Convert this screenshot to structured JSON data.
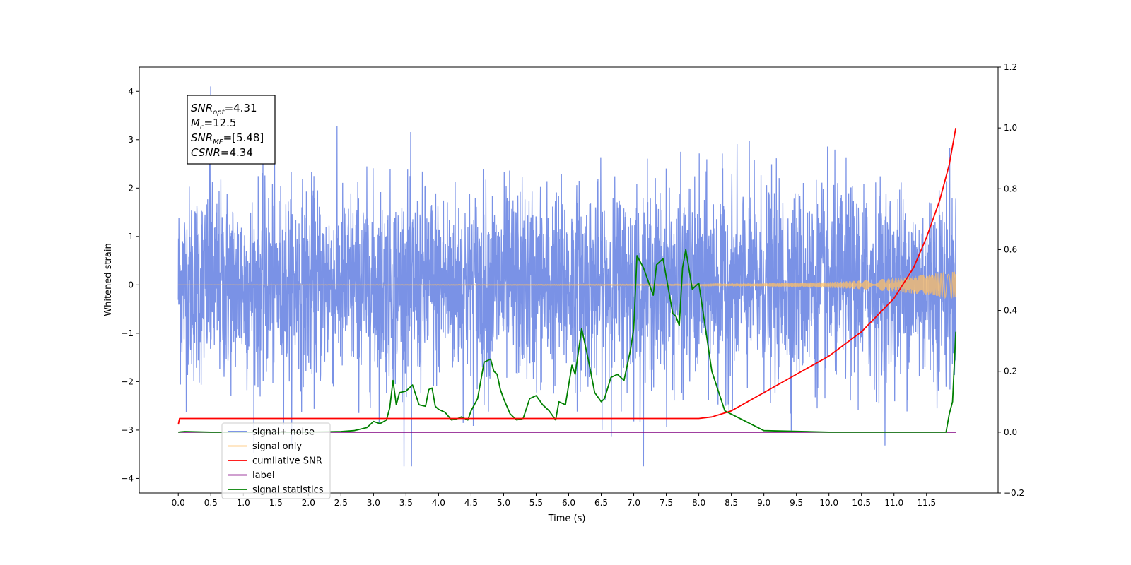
{
  "chart_data": {
    "type": "line",
    "title": "",
    "xlabel": "Time (s)",
    "ylabel": "Whitened strain",
    "xlim": [
      -0.6,
      12.6
    ],
    "ylim": [
      -4.3,
      4.5
    ],
    "y2lim": [
      -0.2,
      1.2
    ],
    "xticks": [
      "0.0",
      "0.5",
      "1.0",
      "1.5",
      "2.0",
      "2.5",
      "3.0",
      "3.5",
      "4.0",
      "4.5",
      "5.0",
      "5.5",
      "6.0",
      "6.5",
      "7.0",
      "7.5",
      "8.0",
      "8.5",
      "9.0",
      "9.5",
      "10.0",
      "10.5",
      "11.0",
      "11.5"
    ],
    "yticks": [
      "4",
      "3",
      "2",
      "1",
      "0",
      "−1",
      "−2",
      "−3",
      "−4"
    ],
    "y2ticks": [
      "1.2",
      "1.0",
      "0.8",
      "0.6",
      "0.4",
      "0.2",
      "0.0",
      "−0.2"
    ],
    "legend_position": "lower-left",
    "grid": false,
    "annotation": {
      "lines": [
        {
          "sym": "SNR",
          "sub": "opt",
          "val": "=4.31"
        },
        {
          "sym": "M",
          "sub": "c",
          "val": "=12.5"
        },
        {
          "sym": "SNR",
          "sub": "MF",
          "val": "=[5.48]"
        },
        {
          "sym": "CSNR",
          "sub": "",
          "val": "=4.34"
        }
      ]
    },
    "series": [
      {
        "name": "signal+ noise",
        "color": "#6b86e3",
        "axis": "left",
        "x_range": [
          0,
          11.95
        ],
        "envelope_mean": 0.0,
        "envelope_std": 1.0,
        "max": 4.1,
        "min": -3.75
      },
      {
        "name": "signal only",
        "color": "#ffbf66",
        "axis": "left",
        "x": [
          0,
          8,
          9,
          10,
          10.5,
          11,
          11.5,
          11.95
        ],
        "amplitude": [
          0.0,
          0.01,
          0.03,
          0.06,
          0.09,
          0.14,
          0.21,
          0.3
        ]
      },
      {
        "name": "cumilative SNR",
        "color": "#ff0000",
        "axis": "right",
        "x": [
          0,
          0.02,
          8.0,
          8.2,
          8.5,
          9.0,
          9.5,
          10.0,
          10.5,
          11.0,
          11.3,
          11.5,
          11.7,
          11.85,
          11.95
        ],
        "values": [
          0.025,
          0.045,
          0.045,
          0.05,
          0.07,
          0.13,
          0.19,
          0.25,
          0.33,
          0.44,
          0.54,
          0.64,
          0.76,
          0.88,
          1.0
        ]
      },
      {
        "name": "label",
        "color": "#800080",
        "axis": "right",
        "x": [
          0,
          11.95
        ],
        "values": [
          0.0,
          0.0
        ]
      },
      {
        "name": "signal statistics",
        "color": "#008000",
        "axis": "right",
        "x": [
          0,
          0.1,
          0.5,
          1.0,
          2.0,
          2.5,
          2.7,
          2.9,
          3.0,
          3.1,
          3.2,
          3.25,
          3.3,
          3.35,
          3.4,
          3.5,
          3.6,
          3.7,
          3.8,
          3.85,
          3.9,
          3.95,
          4.0,
          4.1,
          4.2,
          4.3,
          4.35,
          4.45,
          4.5,
          4.6,
          4.7,
          4.8,
          4.85,
          4.9,
          4.95,
          5.0,
          5.1,
          5.2,
          5.3,
          5.4,
          5.5,
          5.6,
          5.7,
          5.8,
          5.85,
          5.95,
          6.05,
          6.1,
          6.2,
          6.3,
          6.4,
          6.5,
          6.55,
          6.65,
          6.75,
          6.85,
          6.95,
          7.0,
          7.05,
          7.15,
          7.25,
          7.3,
          7.35,
          7.45,
          7.6,
          7.65,
          7.7,
          7.75,
          7.8,
          7.9,
          8.0,
          8.2,
          8.4,
          9.0,
          10.0,
          11.0,
          11.7,
          11.8,
          11.85,
          11.9,
          11.95
        ],
        "values": [
          0.0,
          0.002,
          0.0,
          0.0,
          0.0,
          0.002,
          0.005,
          0.015,
          0.035,
          0.028,
          0.04,
          0.08,
          0.17,
          0.09,
          0.13,
          0.135,
          0.155,
          0.09,
          0.085,
          0.14,
          0.145,
          0.085,
          0.075,
          0.065,
          0.04,
          0.045,
          0.05,
          0.04,
          0.07,
          0.11,
          0.23,
          0.24,
          0.2,
          0.19,
          0.14,
          0.11,
          0.06,
          0.04,
          0.045,
          0.11,
          0.12,
          0.09,
          0.07,
          0.04,
          0.1,
          0.09,
          0.22,
          0.19,
          0.34,
          0.24,
          0.13,
          0.1,
          0.11,
          0.18,
          0.19,
          0.17,
          0.27,
          0.34,
          0.58,
          0.54,
          0.48,
          0.45,
          0.55,
          0.57,
          0.39,
          0.38,
          0.35,
          0.54,
          0.6,
          0.47,
          0.49,
          0.2,
          0.07,
          0.005,
          0.0,
          0.0,
          0.0,
          0.0,
          0.06,
          0.1,
          0.33
        ]
      }
    ]
  }
}
